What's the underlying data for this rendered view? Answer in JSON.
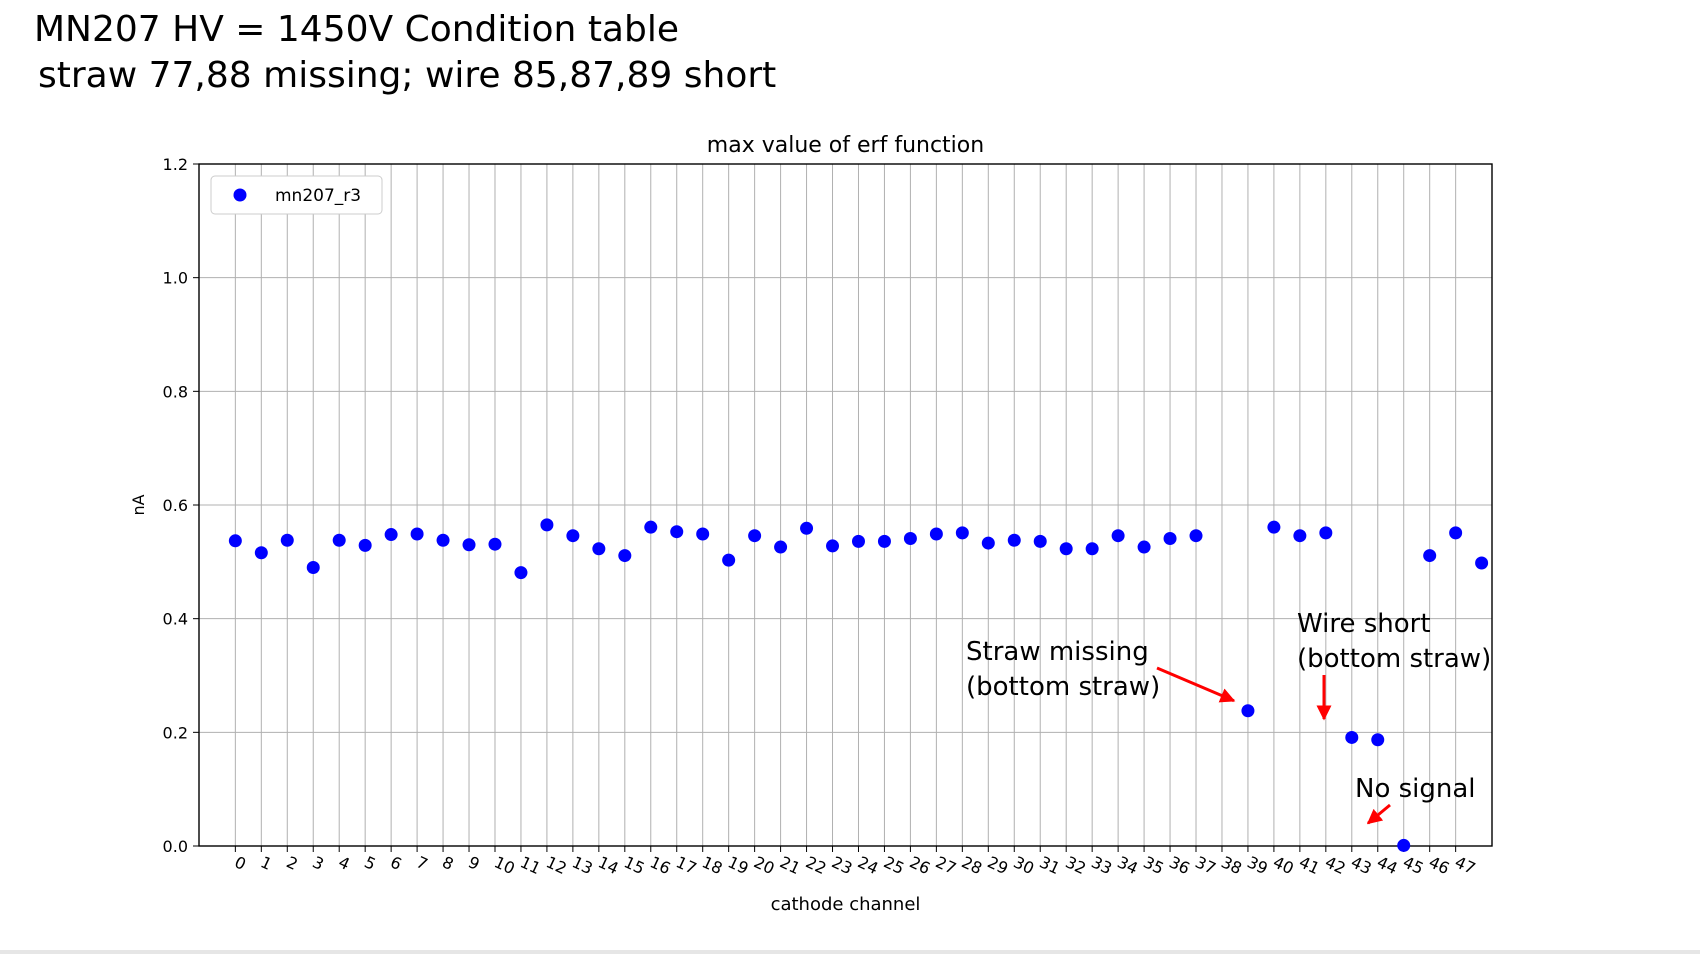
{
  "slide": {
    "title_line1": "MN207 HV = 1450V Condition table",
    "title_line2": "straw 77,88 missing; wire 85,87,89 short"
  },
  "chart_data": {
    "type": "scatter",
    "title": "max value of erf function",
    "xlabel": "cathode channel",
    "ylabel": "nA",
    "ylim": [
      0.0,
      1.2
    ],
    "xlim": [
      -1.4,
      48.4
    ],
    "yticks": [
      0.0,
      0.2,
      0.4,
      0.6,
      0.8,
      1.0,
      1.2
    ],
    "ytick_labels": [
      "0.0",
      "0.2",
      "0.4",
      "0.6",
      "0.8",
      "1.0",
      "1.2"
    ],
    "xtick_labels": [
      "0",
      "1",
      "2",
      "3",
      "4",
      "5",
      "6",
      "7",
      "8",
      "9",
      "10",
      "11",
      "12",
      "13",
      "14",
      "15",
      "16",
      "17",
      "18",
      "19",
      "20",
      "21",
      "22",
      "23",
      "24",
      "25",
      "26",
      "27",
      "28",
      "29",
      "30",
      "31",
      "32",
      "33",
      "34",
      "35",
      "36",
      "37",
      "38",
      "39",
      "40",
      "41",
      "42",
      "43",
      "44",
      "45",
      "46",
      "47"
    ],
    "grid": true,
    "legend_position": "top-left",
    "marker_color": "#0000ff",
    "series": [
      {
        "name": "mn207_r3",
        "x": [
          0,
          1,
          2,
          3,
          4,
          5,
          6,
          7,
          8,
          9,
          10,
          11,
          12,
          13,
          14,
          15,
          16,
          17,
          18,
          19,
          20,
          21,
          22,
          23,
          24,
          25,
          26,
          27,
          28,
          29,
          30,
          31,
          32,
          33,
          34,
          35,
          36,
          37,
          39,
          40,
          41,
          42,
          43,
          44,
          45,
          46,
          47,
          48
        ],
        "y": [
          0.537,
          0.516,
          0.538,
          0.49,
          0.538,
          0.529,
          0.548,
          0.549,
          0.538,
          0.53,
          0.531,
          0.481,
          0.565,
          0.546,
          0.523,
          0.511,
          0.561,
          0.553,
          0.549,
          0.503,
          0.546,
          0.526,
          0.559,
          0.528,
          0.536,
          0.536,
          0.541,
          0.549,
          0.551,
          0.533,
          0.538,
          0.536,
          0.523,
          0.523,
          0.546,
          0.526,
          0.541,
          0.546,
          0.238,
          0.561,
          0.546,
          0.551,
          0.191,
          0.187,
          0.001,
          0.511,
          0.551,
          0.498
        ]
      }
    ],
    "annotations": [
      {
        "line1": "Straw missing",
        "line2": "(bottom straw)",
        "target_x": 39,
        "target_y": 0.238,
        "arrow_color": "#ff0000"
      },
      {
        "line1": "Wire short",
        "line2": "(bottom straw)",
        "target_x": 43,
        "target_y": 0.22,
        "arrow_color": "#ff0000"
      },
      {
        "line1": "No signal",
        "line2": "",
        "target_x": 45,
        "target_y": 0.04,
        "arrow_color": "#ff0000"
      }
    ]
  }
}
